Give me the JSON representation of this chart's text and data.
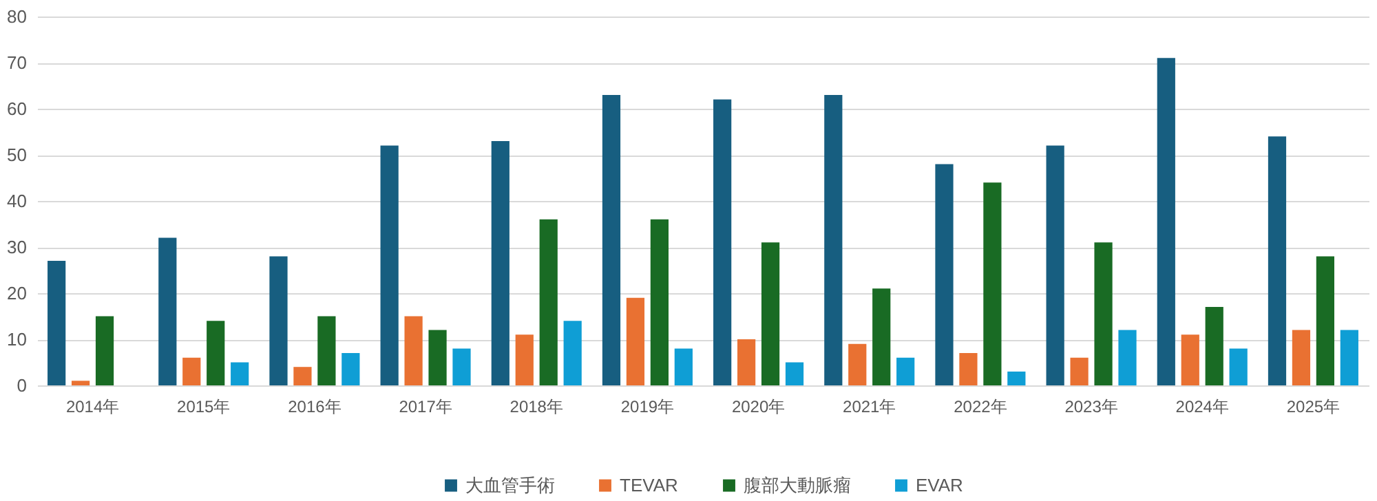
{
  "chart_data": {
    "type": "bar",
    "categories": [
      "2014年",
      "2015年",
      "2016年",
      "2017年",
      "2018年",
      "2019年",
      "2020年",
      "2021年",
      "2022年",
      "2023年",
      "2024年",
      "2025年"
    ],
    "series": [
      {
        "name": "大血管手術",
        "color": "#175e80",
        "values": [
          27,
          32,
          28,
          52,
          53,
          63,
          62,
          63,
          48,
          52,
          71,
          54
        ]
      },
      {
        "name": "TEVAR",
        "color": "#e97132",
        "values": [
          1,
          6,
          4,
          15,
          11,
          19,
          10,
          9,
          7,
          6,
          11,
          12
        ]
      },
      {
        "name": "腹部大動脈瘤",
        "color": "#196b24",
        "values": [
          15,
          14,
          15,
          12,
          36,
          36,
          31,
          21,
          44,
          31,
          17,
          28
        ]
      },
      {
        "name": "EVAR",
        "color": "#0f9ed5",
        "values": [
          null,
          5,
          7,
          8,
          14,
          8,
          5,
          6,
          3,
          12,
          8,
          12
        ]
      }
    ],
    "ylim": [
      0,
      80
    ],
    "yticks": [
      0,
      10,
      20,
      30,
      40,
      50,
      60,
      70,
      80
    ],
    "grid": "y",
    "legend": "bottom"
  }
}
